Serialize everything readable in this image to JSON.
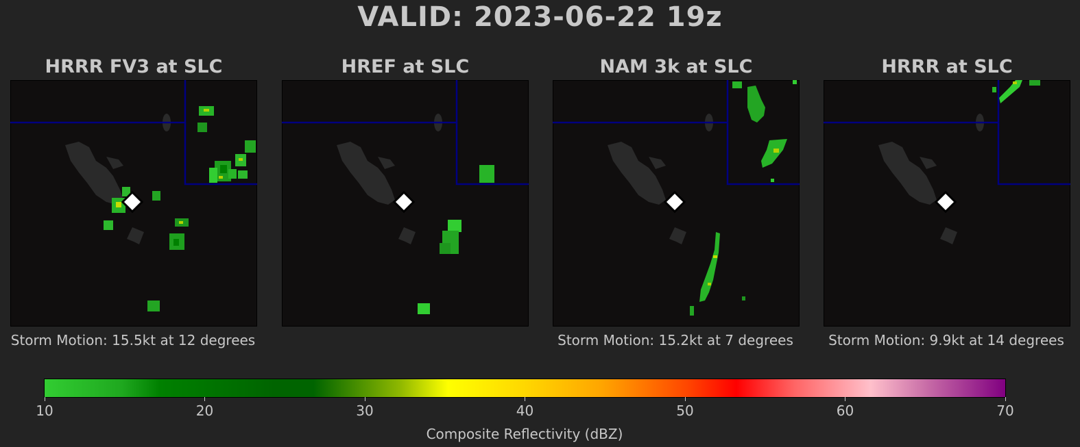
{
  "header": {
    "title": "VALID: 2023-06-22 19z"
  },
  "colors": {
    "background": "#232323",
    "map_background": "#100e0e",
    "state_border": "#000080",
    "lake": "#2a2a2a",
    "station_marker": "#ffffff"
  },
  "panels": [
    {
      "title": "HRRR FV3 at SLC",
      "storm_motion": "Storm Motion: 15.5kt at 12 degrees"
    },
    {
      "title": "HREF at SLC",
      "storm_motion": ""
    },
    {
      "title": "NAM 3k at SLC",
      "storm_motion": "Storm Motion: 15.2kt at 7 degrees"
    },
    {
      "title": "HRRR at SLC",
      "storm_motion": "Storm Motion: 9.9kt at 14 degrees"
    }
  ],
  "colorbar": {
    "label": "Composite Reflectivity (dBZ)",
    "min": 10,
    "max": 70,
    "ticks": [
      "10",
      "20",
      "30",
      "40",
      "50",
      "60",
      "70"
    ],
    "stops": [
      {
        "value": 10,
        "color": "#32cd32"
      },
      {
        "value": 17,
        "color": "#008000"
      },
      {
        "value": 27,
        "color": "#006400"
      },
      {
        "value": 35,
        "color": "#ffff00"
      },
      {
        "value": 45,
        "color": "#ffa500"
      },
      {
        "value": 53,
        "color": "#ff0000"
      },
      {
        "value": 62,
        "color": "#ffc0cb"
      },
      {
        "value": 70,
        "color": "#800080"
      }
    ]
  }
}
